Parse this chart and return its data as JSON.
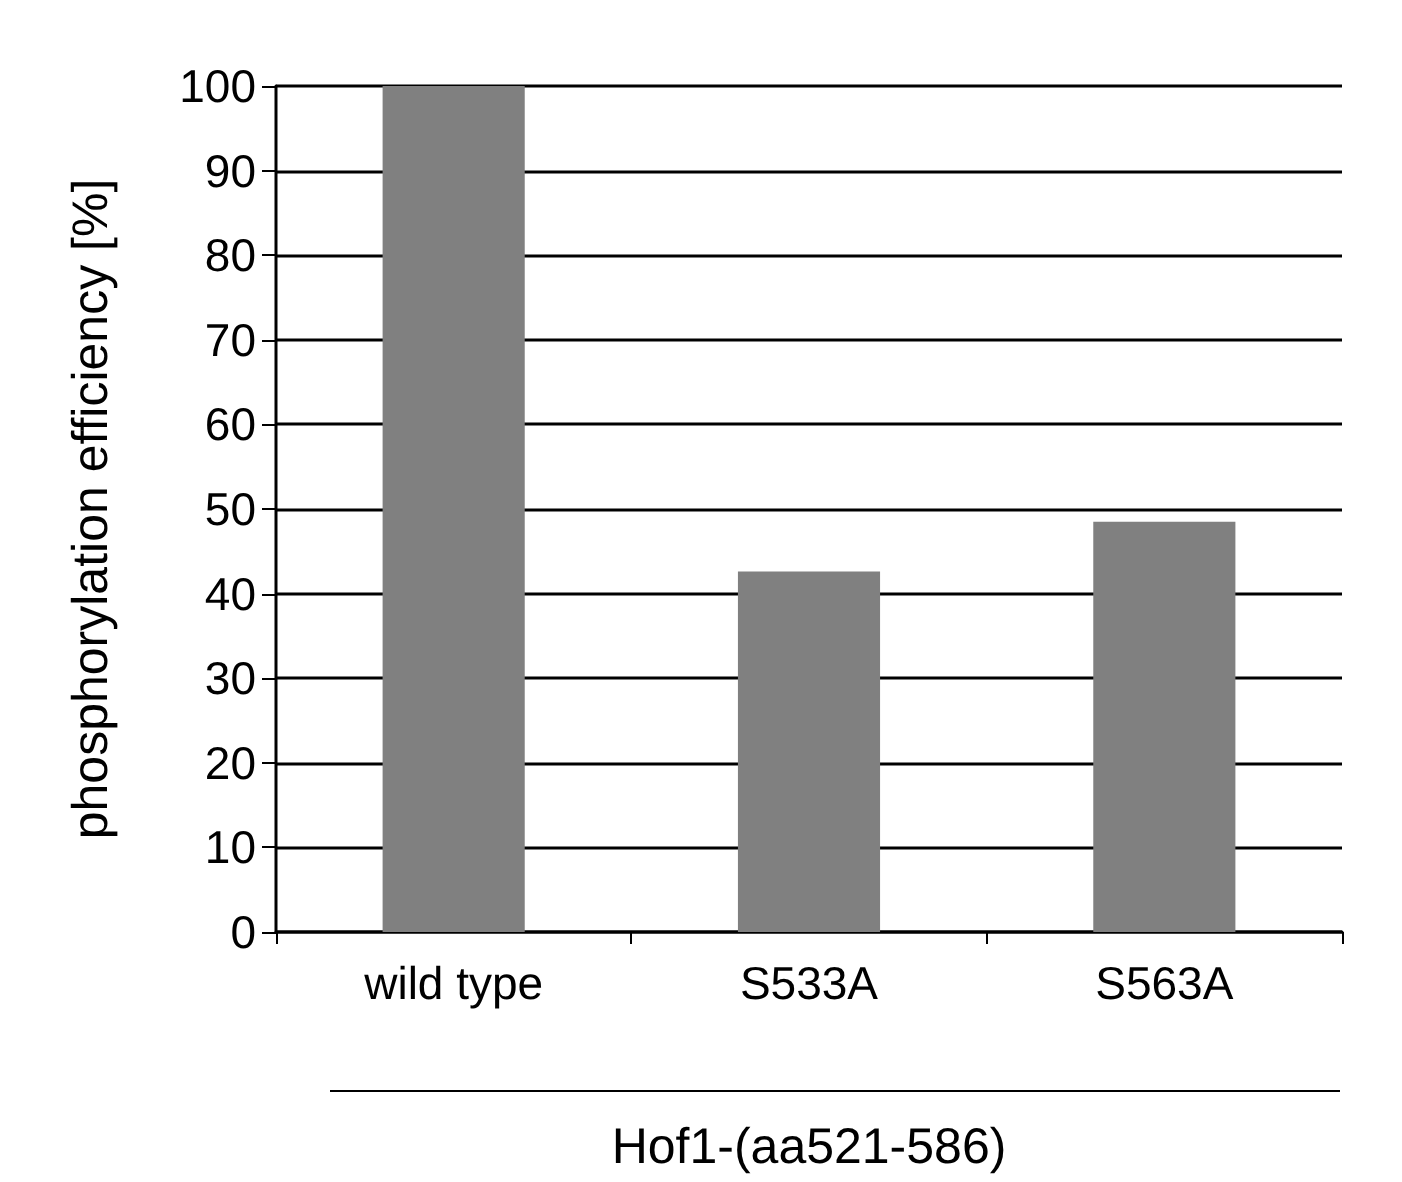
{
  "chart_data": {
    "type": "bar",
    "categories": [
      "wild type",
      "S533A",
      "S563A"
    ],
    "values": [
      100,
      42.6,
      48.5
    ],
    "color": "#808080",
    "ylabel": "phosphorylation efficiency [%]",
    "xlabel": "Hof1-(aa521-586)",
    "ylim": [
      0,
      100
    ],
    "yticks": [
      0,
      10,
      20,
      30,
      40,
      50,
      60,
      70,
      80,
      90,
      100
    ],
    "grid": "y"
  }
}
